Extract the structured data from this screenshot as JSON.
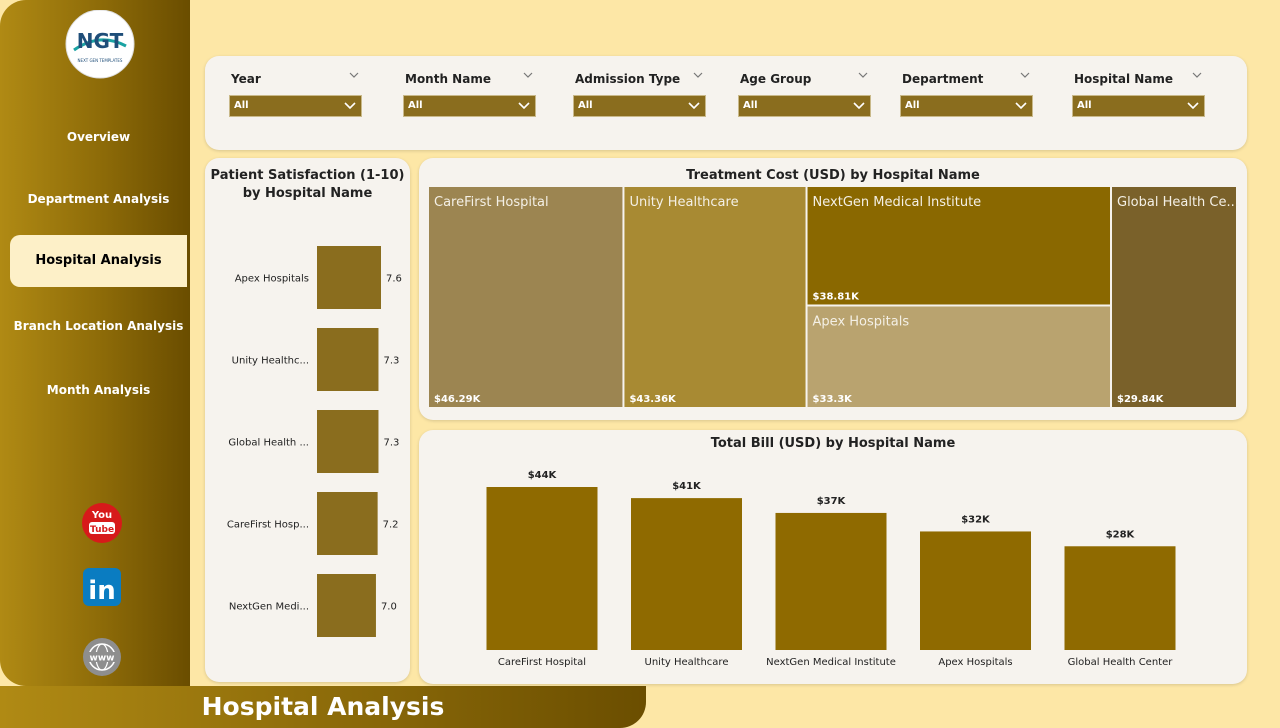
{
  "title": "Hospital Analysis",
  "logo": {
    "text": "NGT",
    "subtext": "NEXT GEN TEMPLATES"
  },
  "nav": [
    "Overview",
    "Department Analysis",
    "Hospital Analysis",
    "Branch Location Analysis",
    "Month Analysis"
  ],
  "active_nav": 2,
  "filters": [
    {
      "label": "Year",
      "value": "All"
    },
    {
      "label": "Month Name",
      "value": "All"
    },
    {
      "label": "Admission Type",
      "value": "All"
    },
    {
      "label": "Age Group",
      "value": "All"
    },
    {
      "label": "Department",
      "value": "All"
    },
    {
      "label": "Hospital Name",
      "value": "All"
    }
  ],
  "social": {
    "youtube": [
      "You",
      "Tube"
    ],
    "linkedin": "in",
    "web": "www"
  },
  "chart_data": [
    {
      "type": "hbar",
      "title": "Patient Satisfaction (1-10) by Hospital Name",
      "categories": [
        "Apex Hospitals",
        "Unity Healthc...",
        "Global Health ...",
        "CareFirst Hosp...",
        "NextGen Medi..."
      ],
      "values": [
        7.6,
        7.3,
        7.3,
        7.2,
        7.0
      ],
      "value_labels": [
        "7.6",
        "7.3",
        "7.3",
        "7.2",
        "7.0"
      ],
      "color": "#8a6d1e"
    },
    {
      "type": "treemap",
      "title": "Treatment Cost (USD) by Hospital Name",
      "categories": [
        "CareFirst Hospital",
        "Unity Healthcare",
        "NextGen Medical Institute",
        "Apex Hospitals",
        "Global Health Ce..."
      ],
      "values": [
        46290,
        43360,
        38810,
        33300,
        29840
      ],
      "value_labels": [
        "$46.29K",
        "$43.36K",
        "$38.81K",
        "$33.3K",
        "$29.84K"
      ],
      "colors": [
        "#9c8551",
        "#a88a33",
        "#8a6800",
        "#b9a36f",
        "#7a612a"
      ]
    },
    {
      "type": "bar",
      "title": "Total Bill (USD) by Hospital Name",
      "categories": [
        "CareFirst Hospital",
        "Unity Healthcare",
        "NextGen Medical Institute",
        "Apex Hospitals",
        "Global Health Center"
      ],
      "values": [
        44000,
        41000,
        37000,
        32000,
        28000
      ],
      "value_labels": [
        "$44K",
        "$41K",
        "$37K",
        "$32K",
        "$28K"
      ],
      "color": "#8f6a00"
    }
  ]
}
